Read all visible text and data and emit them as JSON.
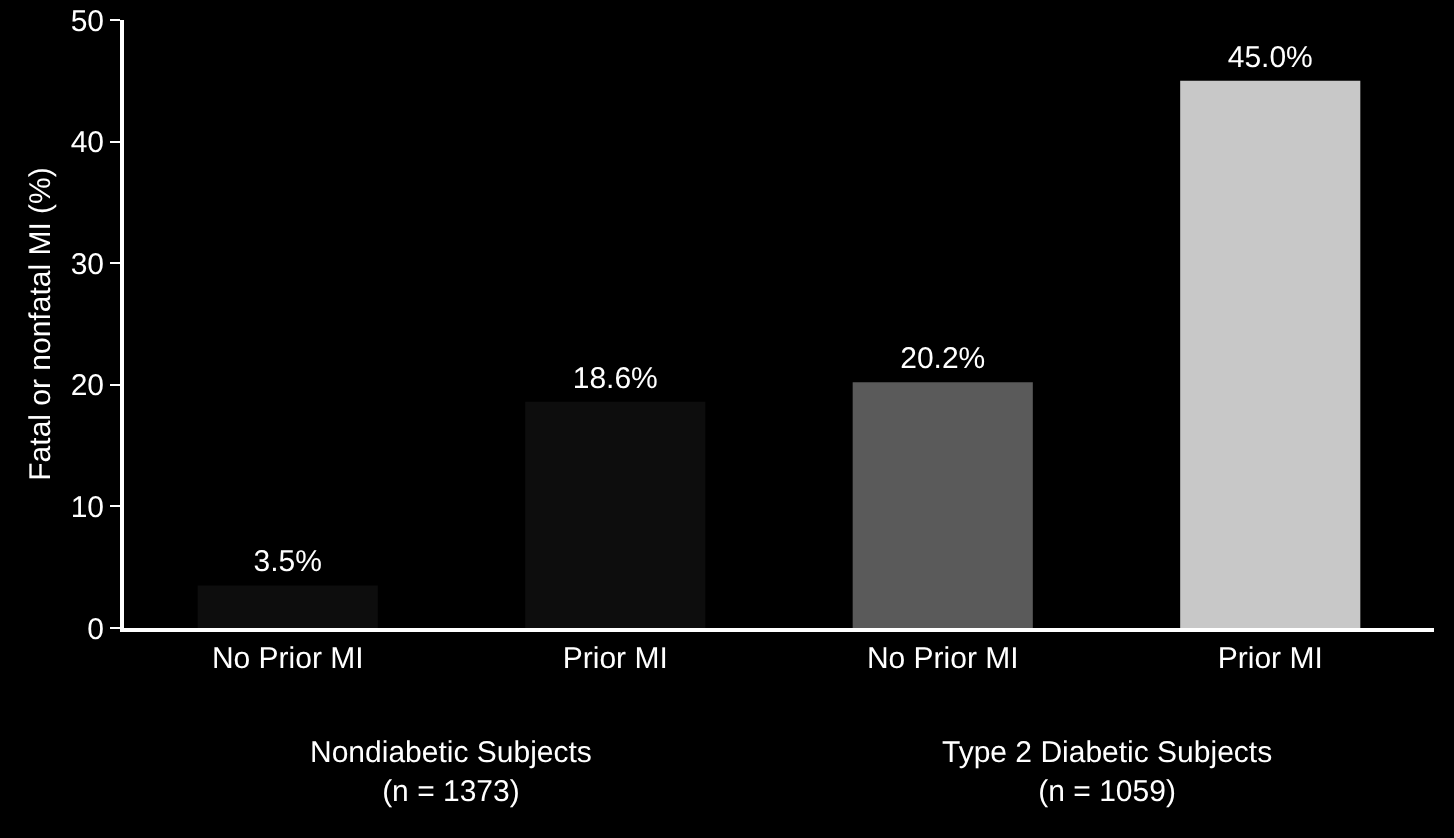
{
  "chart_data": {
    "type": "bar",
    "ylabel": "Fatal or nonfatal MI (%)",
    "categories": [
      "No Prior MI",
      "Prior MI",
      "No Prior MI",
      "Prior MI"
    ],
    "values": [
      3.5,
      18.6,
      20.2,
      45.0
    ],
    "colors": [
      "#0d0d0d",
      "#0d0d0d",
      "#5a5a5a",
      "#c8c8c8"
    ],
    "value_labels": [
      "3.5%",
      "18.6%",
      "20.2%",
      "45.0%"
    ],
    "ylim": [
      0,
      50
    ],
    "yticks": [
      0,
      10,
      20,
      30,
      40,
      50
    ],
    "grid": false,
    "annotations": [
      "Nondiabetic Subjects\n(n = 1373)",
      "Type 2 Diabetic Subjects\n(n = 1059)"
    ]
  }
}
